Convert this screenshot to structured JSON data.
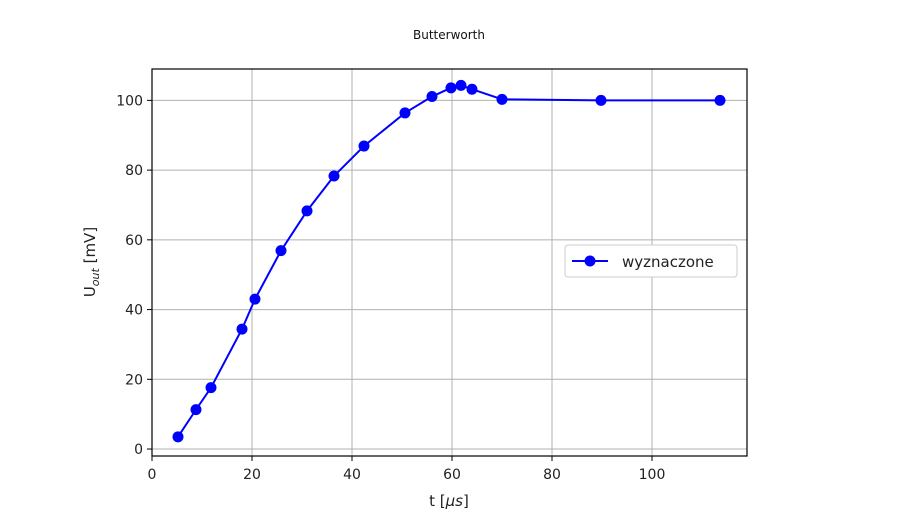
{
  "chart_data": {
    "type": "line",
    "title": "Butterworth",
    "xlabel_main": "t [",
    "xlabel_unit": "μs",
    "xlabel_tail": "]",
    "ylabel_main": "U",
    "ylabel_sub": "out",
    "ylabel_tail": " [mV]",
    "xlim": [
      0,
      119
    ],
    "ylim": [
      -2,
      109
    ],
    "xticks": [
      0,
      20,
      40,
      60,
      80,
      100
    ],
    "yticks": [
      0,
      20,
      40,
      60,
      80,
      100
    ],
    "grid": true,
    "legend_position": "center-right",
    "series": [
      {
        "name": "wyznaczone",
        "color": "#0000ff",
        "marker": "circle",
        "x": [
          5.2,
          8.8,
          11.8,
          18.0,
          20.6,
          25.8,
          31.0,
          36.4,
          42.4,
          50.6,
          56.0,
          59.8,
          61.8,
          64.0,
          70.0,
          89.8,
          113.6
        ],
        "y": [
          3.5,
          11.3,
          17.6,
          34.4,
          43.0,
          56.9,
          68.3,
          78.3,
          86.9,
          96.4,
          101.1,
          103.6,
          104.3,
          103.2,
          100.3,
          100.0,
          100.0
        ]
      }
    ]
  }
}
